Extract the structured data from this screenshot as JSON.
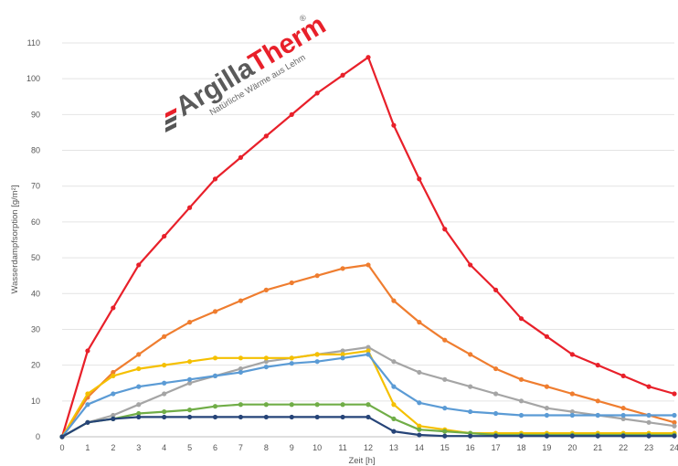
{
  "logo": {
    "name_part1": "Argilla",
    "name_part2": "Therm",
    "registered_mark": "®",
    "tagline": "Natürliche Wärme aus Lehm"
  },
  "chart_data": {
    "type": "line",
    "title": "",
    "xlabel": "Zeit [h]",
    "ylabel": "Wasserdampfsorption [g/m²]",
    "xlim": [
      0,
      24
    ],
    "ylim": [
      0,
      110
    ],
    "x_ticks": [
      0,
      1,
      2,
      3,
      4,
      5,
      6,
      7,
      8,
      9,
      10,
      11,
      12,
      13,
      14,
      15,
      16,
      17,
      18,
      19,
      20,
      21,
      22,
      23,
      24
    ],
    "y_ticks": [
      0,
      10,
      20,
      30,
      40,
      50,
      60,
      70,
      80,
      90,
      100,
      110
    ],
    "grid": true,
    "legend": "none",
    "x": [
      0,
      1,
      2,
      3,
      4,
      5,
      6,
      7,
      8,
      9,
      10,
      11,
      12,
      13,
      14,
      15,
      16,
      17,
      18,
      19,
      20,
      21,
      22,
      23,
      24
    ],
    "series": [
      {
        "color": "#e8202a",
        "values": [
          0,
          24,
          36,
          48,
          56,
          64,
          72,
          78,
          84,
          90,
          96,
          101,
          106,
          87,
          72,
          58,
          48,
          41,
          33,
          28,
          23,
          20,
          17,
          14,
          12
        ]
      },
      {
        "color": "#ef7d2f",
        "values": [
          0,
          11,
          18,
          23,
          28,
          32,
          35,
          38,
          41,
          43,
          45,
          47,
          48,
          38,
          32,
          27,
          23,
          19,
          16,
          14,
          12,
          10,
          8,
          6,
          4
        ]
      },
      {
        "color": "#a5a5a5",
        "values": [
          0,
          4,
          6,
          9,
          12,
          15,
          17,
          19,
          21,
          22,
          23,
          24,
          25,
          21,
          18,
          16,
          14,
          12,
          10,
          8,
          7,
          6,
          5,
          4,
          3
        ]
      },
      {
        "color": "#f5c000",
        "values": [
          0,
          12,
          17,
          19,
          20,
          21,
          22,
          22,
          22,
          22,
          23,
          23,
          24,
          9,
          3,
          2,
          1,
          1,
          1,
          1,
          1,
          1,
          1,
          1,
          1
        ]
      },
      {
        "color": "#5b9bd5",
        "values": [
          0,
          9,
          12,
          14,
          15,
          16,
          17,
          18,
          19.5,
          20.5,
          21,
          22,
          23,
          14,
          9.5,
          8,
          7,
          6.5,
          6,
          6,
          6,
          6,
          6,
          6,
          6
        ]
      },
      {
        "color": "#70ad47",
        "values": [
          0,
          4,
          5,
          6.5,
          7,
          7.5,
          8.5,
          9,
          9,
          9,
          9,
          9,
          9,
          5,
          2,
          1.5,
          1,
          0.5,
          0.5,
          0.5,
          0.5,
          0.5,
          0.5,
          0.5,
          0.5
        ]
      },
      {
        "color": "#264478",
        "values": [
          0,
          4,
          5,
          5.5,
          5.5,
          5.5,
          5.5,
          5.5,
          5.5,
          5.5,
          5.5,
          5.5,
          5.5,
          1.5,
          0.5,
          0.2,
          0.2,
          0.2,
          0.2,
          0.2,
          0.2,
          0.2,
          0.2,
          0.2,
          0.2
        ]
      }
    ]
  }
}
